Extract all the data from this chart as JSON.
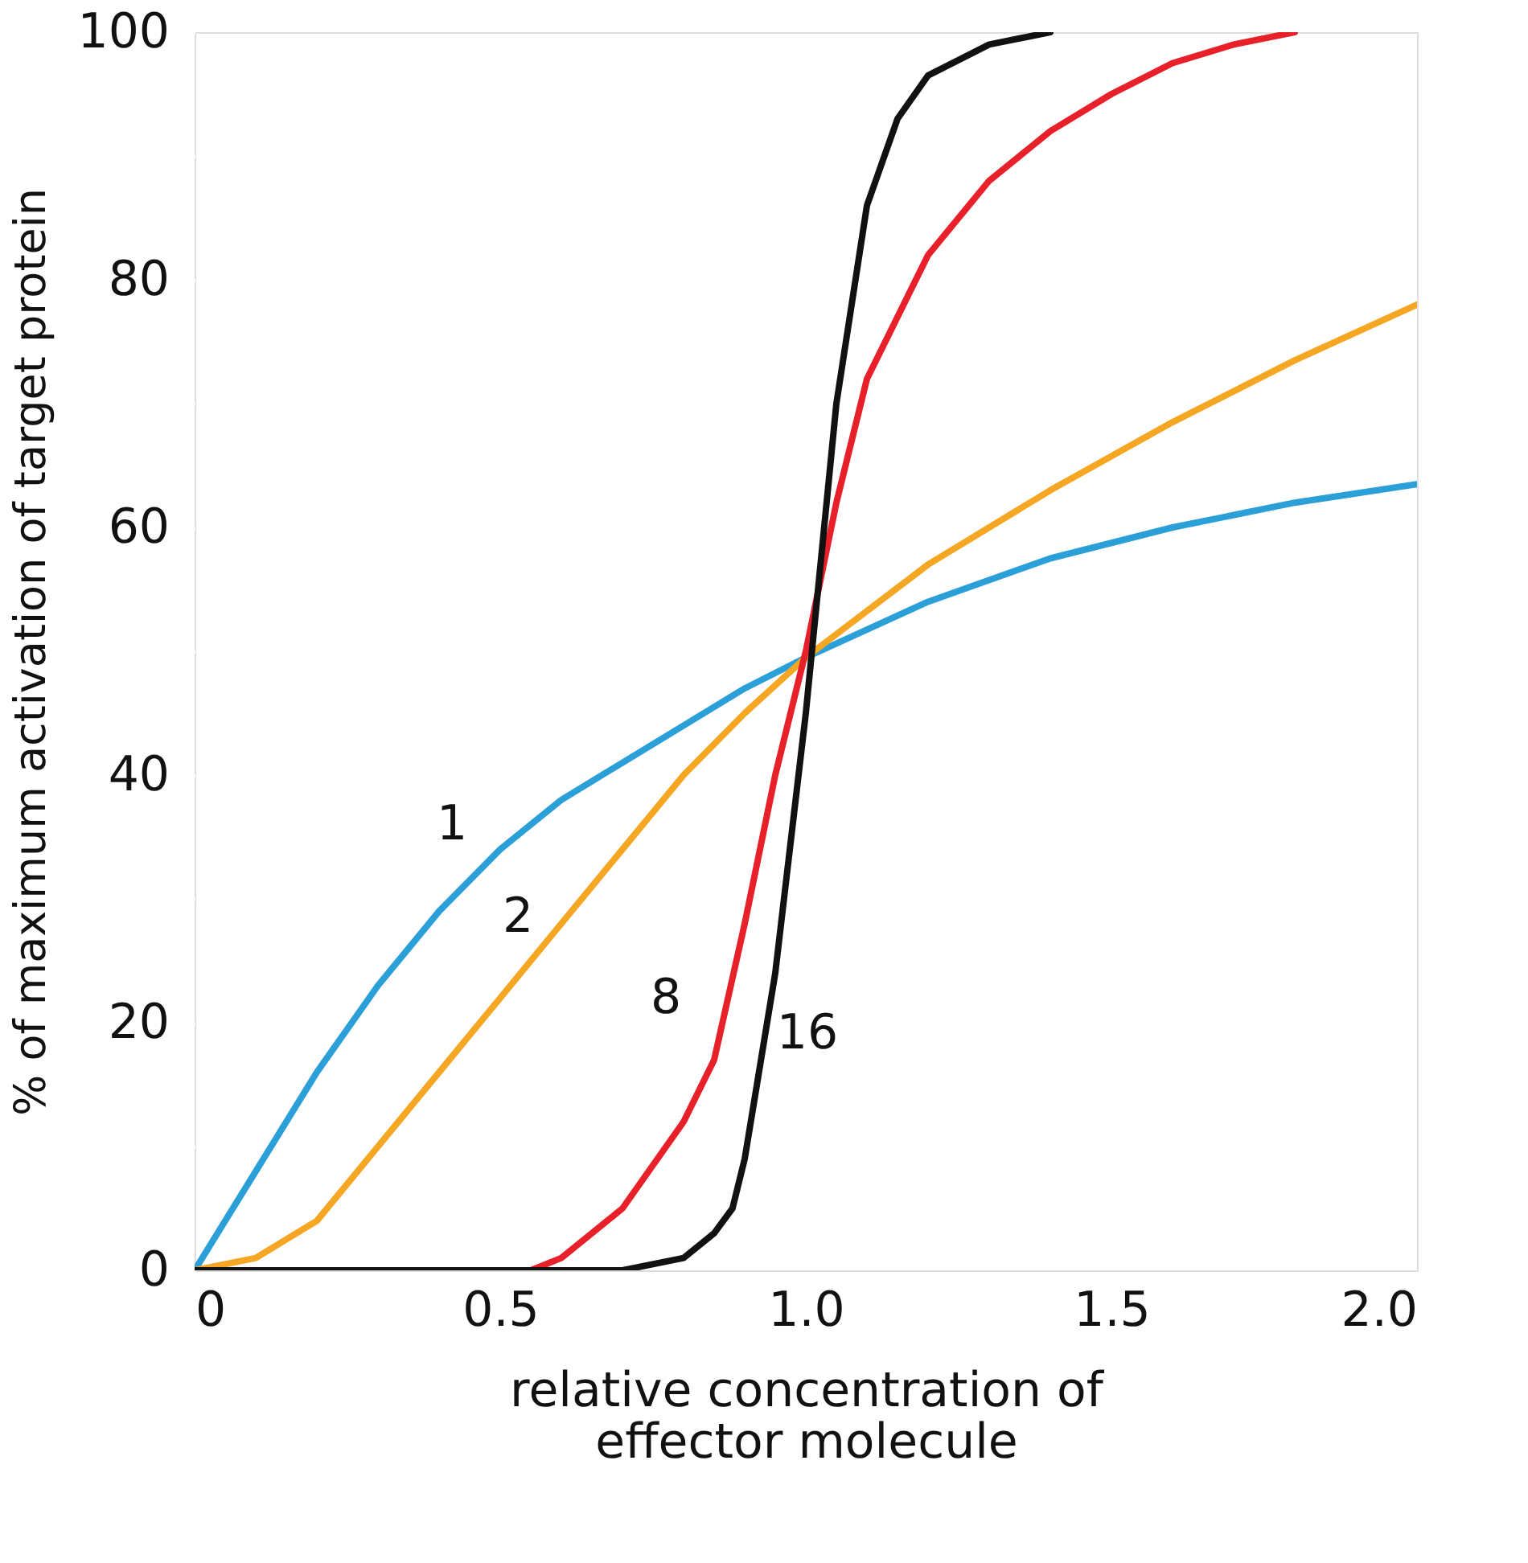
{
  "chart_data": {
    "type": "line",
    "xlabel": "relative concentration of\neffector molecule",
    "ylabel": "% of maximum activation of target protein",
    "xlim": [
      0,
      2.0
    ],
    "xticks": [
      0,
      0.5,
      {
        "value": 1.0,
        "label": "1.0"
      },
      1.5,
      {
        "value": 2.0,
        "label": "2.0"
      }
    ],
    "ylim": [
      0,
      100
    ],
    "yticks": [
      0,
      {
        "value": 10,
        "label": null
      },
      20,
      {
        "value": 30,
        "label": null
      },
      40,
      {
        "value": 50,
        "label": null
      },
      60,
      {
        "value": 70,
        "label": null
      },
      80,
      {
        "value": 90,
        "label": null
      },
      100
    ],
    "grid": false,
    "legend": false,
    "marker": "none",
    "line_style": "solid",
    "series": [
      {
        "color": "#2a9fd8",
        "x": [
          0,
          0.1,
          0.2,
          0.3,
          0.4,
          0.5,
          0.6,
          0.7,
          0.8,
          0.9,
          1.0,
          1.2,
          1.4,
          1.6,
          1.8,
          2.0
        ],
        "values": [
          0,
          8,
          16,
          23,
          29,
          34,
          38,
          41,
          44,
          47,
          49.5,
          54,
          57.5,
          60,
          62,
          63.5
        ]
      },
      {
        "color": "#f5a623",
        "x": [
          0,
          0.1,
          0.2,
          0.3,
          0.4,
          0.5,
          0.6,
          0.7,
          0.8,
          0.9,
          1.0,
          1.2,
          1.4,
          1.6,
          1.8,
          2.0
        ],
        "values": [
          0,
          1,
          4,
          10,
          16,
          22,
          28,
          34,
          40,
          45,
          49.5,
          57,
          63,
          68.5,
          73.5,
          78
        ]
      },
      {
        "color": "#e8202a",
        "x": [
          0,
          0.55,
          0.6,
          0.7,
          0.8,
          0.85,
          0.9,
          0.95,
          1.0,
          1.05,
          1.1,
          1.2,
          1.3,
          1.4,
          1.5,
          1.6,
          1.7,
          1.8
        ],
        "values": [
          0,
          0,
          1,
          5,
          12,
          17,
          28,
          40,
          50,
          62,
          72,
          82,
          88,
          92,
          95,
          97.5,
          99,
          100
        ]
      },
      {
        "color": "#111111",
        "x": [
          0,
          0.7,
          0.8,
          0.85,
          0.88,
          0.9,
          0.95,
          1.0,
          1.02,
          1.05,
          1.1,
          1.15,
          1.2,
          1.3,
          1.4
        ],
        "values": [
          0,
          0,
          1,
          3,
          5,
          9,
          24,
          45,
          55,
          70,
          86,
          93,
          96.5,
          99,
          100
        ]
      }
    ],
    "annotations": [
      {
        "text": "1",
        "x": 0.5,
        "y": 34
      },
      {
        "text": "2",
        "x": 0.6,
        "y": 28
      },
      {
        "text": "8",
        "x": 0.85,
        "y": 17
      },
      {
        "text": "16",
        "x": 0.95,
        "y": 24
      }
    ]
  }
}
